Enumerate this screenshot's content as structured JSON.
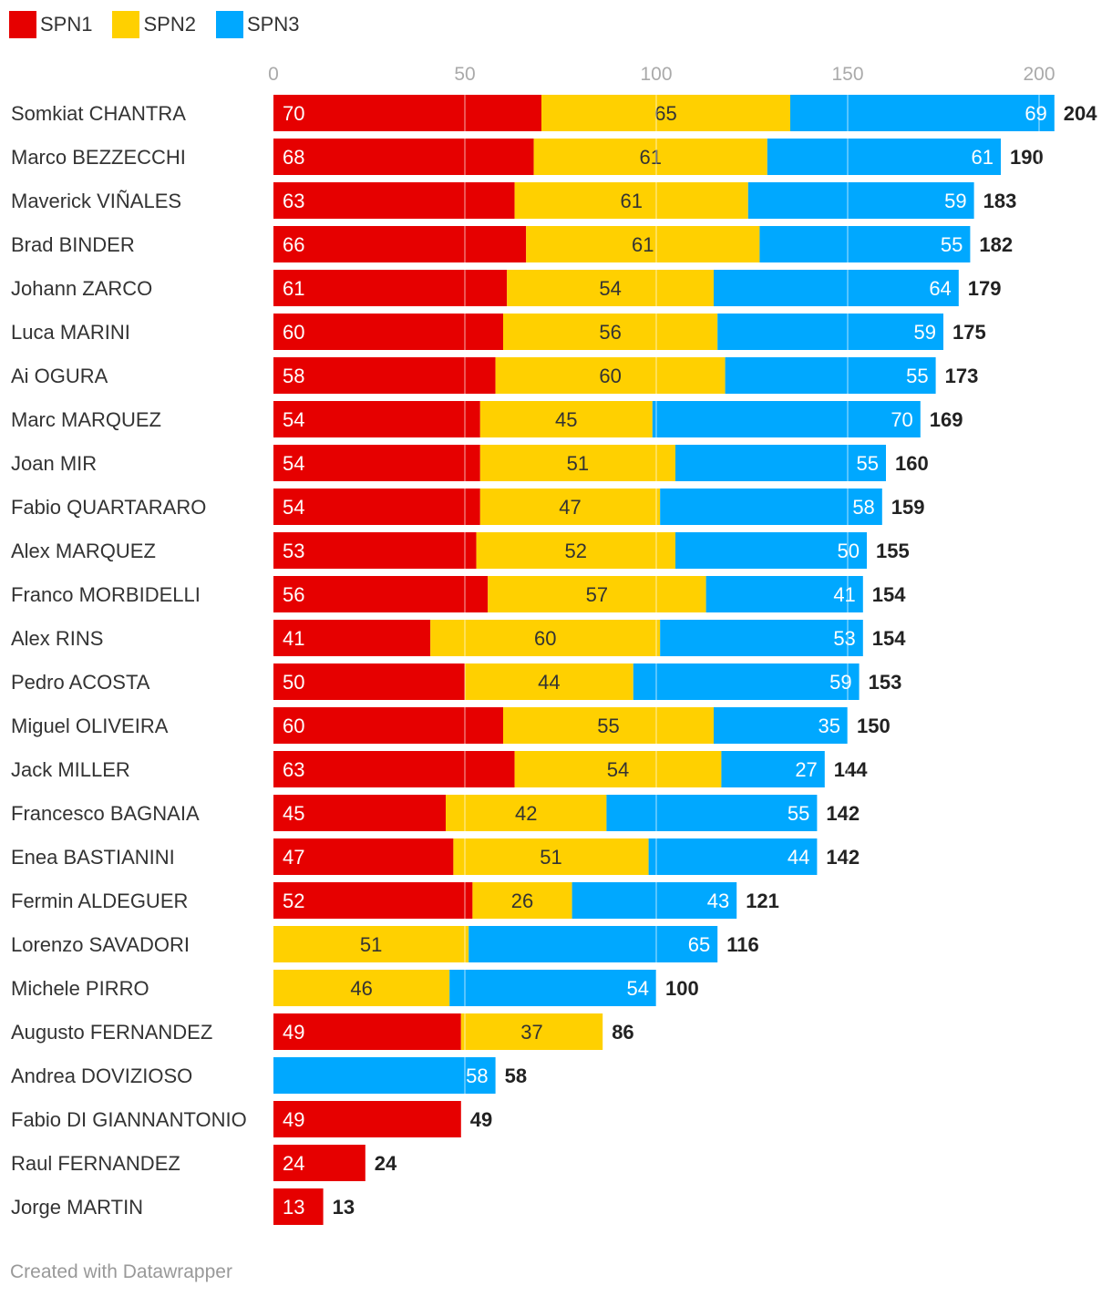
{
  "chart_data": {
    "type": "bar",
    "orientation": "horizontal",
    "stacked": true,
    "legend": [
      {
        "name": "SPN1",
        "color": "#e60000"
      },
      {
        "name": "SPN2",
        "color": "#ffd000"
      },
      {
        "name": "SPN3",
        "color": "#00a8ff"
      }
    ],
    "x_ticks": [
      0,
      50,
      100,
      150,
      200
    ],
    "xlim": [
      0,
      204
    ],
    "categories": [
      "Somkiat CHANTRA",
      "Marco BEZZECCHI",
      "Maverick VIÑALES",
      "Brad BINDER",
      "Johann ZARCO",
      "Luca MARINI",
      "Ai OGURA",
      "Marc MARQUEZ",
      "Joan MIR",
      "Fabio QUARTARARO",
      "Alex MARQUEZ",
      "Franco MORBIDELLI",
      "Alex RINS",
      "Pedro ACOSTA",
      "Miguel OLIVEIRA",
      "Jack MILLER",
      "Francesco BAGNAIA",
      "Enea BASTIANINI",
      "Fermin ALDEGUER",
      "Lorenzo SAVADORI",
      "Michele PIRRO",
      "Augusto FERNANDEZ",
      "Andrea DOVIZIOSO",
      "Fabio DI GIANNANTONIO",
      "Raul FERNANDEZ",
      "Jorge MARTIN"
    ],
    "series": [
      {
        "name": "SPN1",
        "values": [
          70,
          68,
          63,
          66,
          61,
          60,
          58,
          54,
          54,
          54,
          53,
          56,
          41,
          50,
          60,
          63,
          45,
          47,
          52,
          null,
          null,
          49,
          null,
          49,
          24,
          13
        ]
      },
      {
        "name": "SPN2",
        "values": [
          65,
          61,
          61,
          61,
          54,
          56,
          60,
          45,
          51,
          47,
          52,
          57,
          60,
          44,
          55,
          54,
          42,
          51,
          26,
          51,
          46,
          37,
          null,
          null,
          null,
          null
        ]
      },
      {
        "name": "SPN3",
        "values": [
          69,
          61,
          59,
          55,
          64,
          59,
          55,
          70,
          55,
          58,
          50,
          41,
          53,
          59,
          35,
          27,
          55,
          44,
          43,
          65,
          54,
          null,
          58,
          null,
          null,
          null
        ]
      }
    ],
    "totals": [
      204,
      190,
      183,
      182,
      179,
      175,
      173,
      169,
      160,
      159,
      155,
      154,
      154,
      153,
      150,
      144,
      142,
      142,
      121,
      116,
      100,
      86,
      58,
      49,
      24,
      13
    ]
  },
  "footer": "Created with Datawrapper"
}
